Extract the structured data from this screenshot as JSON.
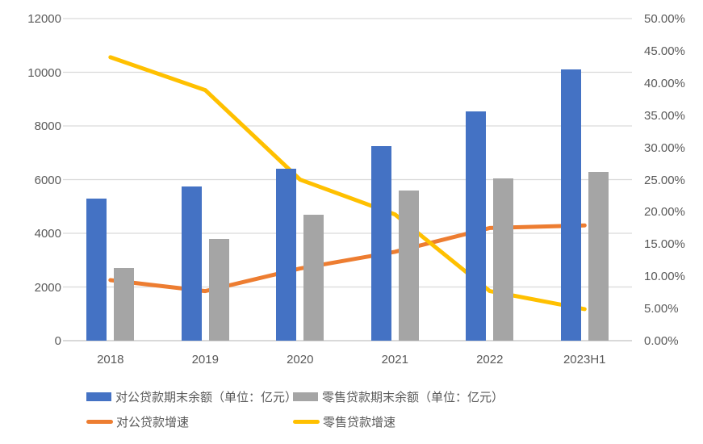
{
  "chart_data": {
    "type": "combo_bar_line",
    "title": "",
    "categories": [
      "2018",
      "2019",
      "2020",
      "2021",
      "2022",
      "2023H1"
    ],
    "series": [
      {
        "name": "对公贷款期末余额（单位：亿元）",
        "type": "bar",
        "axis": "left",
        "color": "#4472C4",
        "values": [
          5300,
          5750,
          6400,
          7250,
          8550,
          10100
        ]
      },
      {
        "name": "零售贷款期末余额（单位：亿元）",
        "type": "bar",
        "axis": "left",
        "color": "#A5A5A5",
        "values": [
          2700,
          3800,
          4700,
          5600,
          6050,
          6300
        ]
      },
      {
        "name": "对公贷款增速",
        "type": "line",
        "axis": "right",
        "color": "#ED7D31",
        "values_pct": [
          9.4,
          7.7,
          11.2,
          13.8,
          17.5,
          17.9
        ]
      },
      {
        "name": "零售贷款增速",
        "type": "line",
        "axis": "right",
        "color": "#FFC000",
        "values_pct": [
          44.0,
          38.9,
          25.0,
          19.6,
          7.7,
          4.9
        ]
      }
    ],
    "left_axis": {
      "min": 0,
      "max": 12000,
      "step": 2000,
      "labels": [
        "12000",
        "10000",
        "8000",
        "6000",
        "4000",
        "2000",
        "0"
      ]
    },
    "right_axis": {
      "min": 0,
      "max": 50,
      "step": 5,
      "format": "0.00%",
      "labels": [
        "50.00%",
        "45.00%",
        "40.00%",
        "35.00%",
        "30.00%",
        "25.00%",
        "20.00%",
        "15.00%",
        "10.00%",
        "5.00%",
        "0.00%"
      ]
    },
    "grid": true,
    "gridline_color": "#D9D9D9",
    "legend_position": "bottom"
  }
}
